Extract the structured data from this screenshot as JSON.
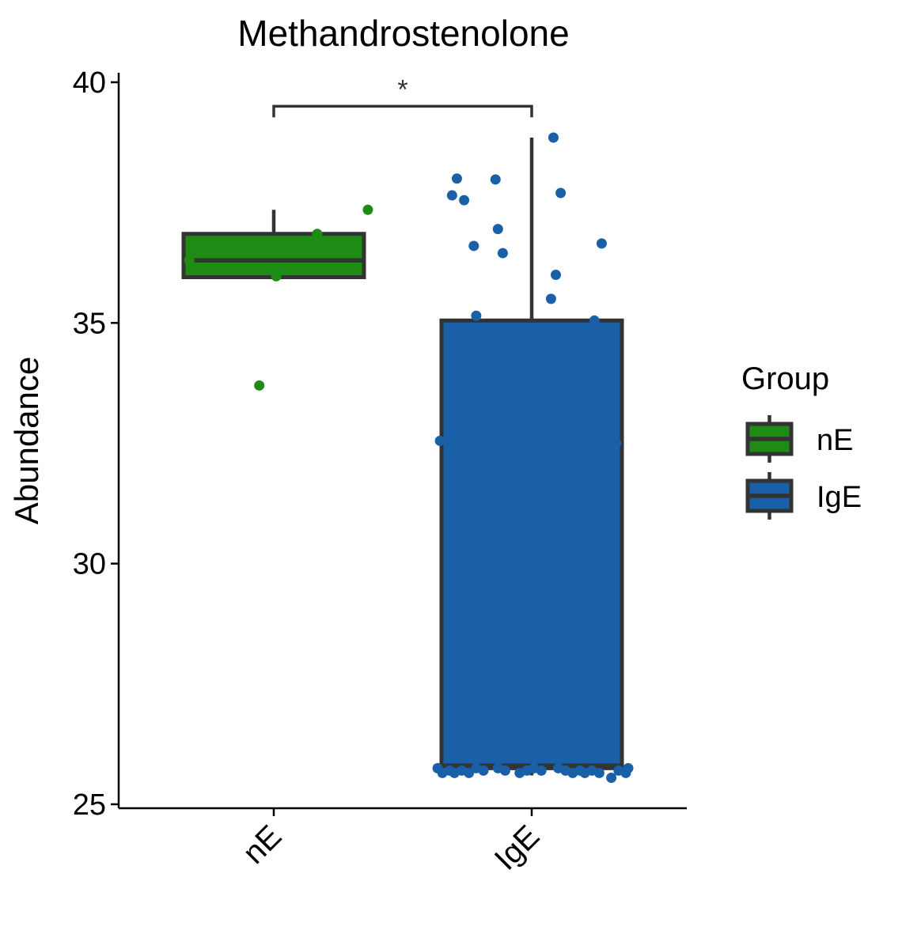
{
  "chart_data": {
    "type": "box",
    "title": "Methandrostenolone",
    "ylabel": "Abundance",
    "xlabel": "",
    "ylim": [
      25,
      40
    ],
    "yticks": [
      25,
      30,
      35,
      40
    ],
    "categories": [
      "nE",
      "IgE"
    ],
    "legend": {
      "title": "Group",
      "position": "right",
      "entries": [
        "nE",
        "IgE"
      ]
    },
    "colors": {
      "nE": "#1e8c14",
      "IgE": "#1a60a8",
      "outline": "#333333"
    },
    "boxes": [
      {
        "group": "nE",
        "whisker_low": 35.95,
        "q1": 35.95,
        "median": 36.3,
        "q3": 36.85,
        "whisker_high": 37.35
      },
      {
        "group": "IgE",
        "whisker_low": 25.6,
        "q1": 25.75,
        "median": 25.8,
        "q3": 35.05,
        "whisker_high": 38.85
      }
    ],
    "points": [
      {
        "group": "nE",
        "values": [
          [
            -0.35,
            36.3
          ],
          [
            0.18,
            36.85
          ],
          [
            0.39,
            37.35
          ],
          [
            0.01,
            35.97
          ],
          [
            -0.06,
            33.7
          ]
        ]
      },
      {
        "group": "IgE",
        "values": [
          [
            0.09,
            38.85
          ],
          [
            -0.31,
            38.0
          ],
          [
            -0.15,
            37.98
          ],
          [
            -0.33,
            37.65
          ],
          [
            -0.28,
            37.55
          ],
          [
            0.12,
            37.7
          ],
          [
            -0.14,
            36.95
          ],
          [
            -0.24,
            36.6
          ],
          [
            -0.12,
            36.45
          ],
          [
            0.29,
            36.65
          ],
          [
            0.1,
            36.0
          ],
          [
            0.08,
            35.5
          ],
          [
            -0.23,
            35.15
          ],
          [
            0.26,
            35.05
          ],
          [
            -0.38,
            32.55
          ],
          [
            0.35,
            32.5
          ],
          [
            -0.39,
            25.75
          ],
          [
            -0.37,
            25.65
          ],
          [
            -0.34,
            25.7
          ],
          [
            -0.32,
            25.65
          ],
          [
            -0.29,
            25.7
          ],
          [
            -0.26,
            25.65
          ],
          [
            -0.23,
            25.75
          ],
          [
            -0.2,
            25.7
          ],
          [
            -0.14,
            25.75
          ],
          [
            -0.11,
            25.7
          ],
          [
            -0.05,
            25.65
          ],
          [
            -0.02,
            25.7
          ],
          [
            0.01,
            25.75
          ],
          [
            0.04,
            25.7
          ],
          [
            0.11,
            25.75
          ],
          [
            0.14,
            25.7
          ],
          [
            0.17,
            25.65
          ],
          [
            0.2,
            25.7
          ],
          [
            0.22,
            25.65
          ],
          [
            0.25,
            25.7
          ],
          [
            0.28,
            25.65
          ],
          [
            0.33,
            25.55
          ],
          [
            0.36,
            25.7
          ],
          [
            0.39,
            25.65
          ],
          [
            0.4,
            25.75
          ]
        ]
      }
    ],
    "significance": {
      "from": "nE",
      "to": "IgE",
      "y": 39.5,
      "label": "*"
    }
  }
}
